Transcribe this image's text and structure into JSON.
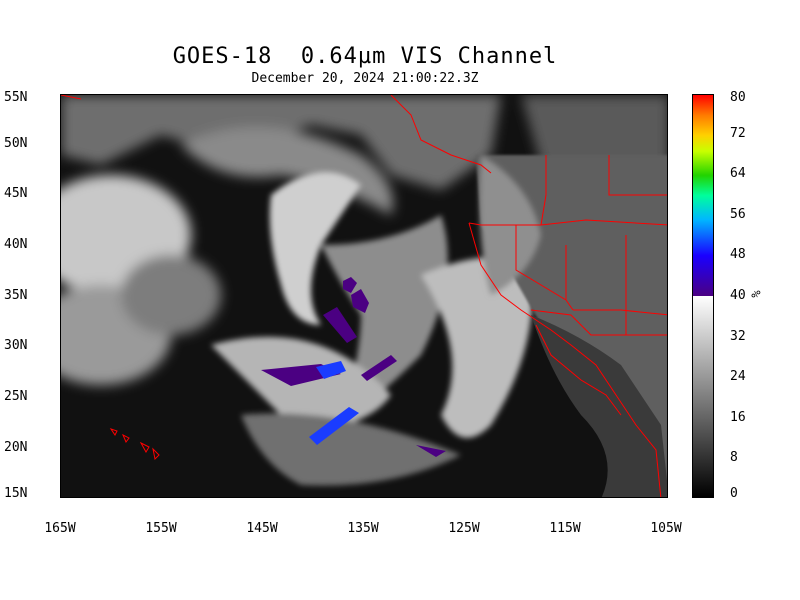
{
  "title": "GOES-18  0.64µm VIS Channel",
  "subtitle": "December 20, 2024 21:00:22.3Z",
  "lat_labels": [
    "55N",
    "50N",
    "45N",
    "40N",
    "35N",
    "30N",
    "25N",
    "20N",
    "15N"
  ],
  "lon_labels": [
    "165W",
    "155W",
    "145W",
    "135W",
    "125W",
    "115W",
    "105W"
  ],
  "colorbar": {
    "labels": [
      "80",
      "72",
      "64",
      "56",
      "48",
      "40",
      "32",
      "24",
      "16",
      "8",
      "0"
    ],
    "unit": "%"
  },
  "colors": {
    "border": "#ff0000",
    "cold_cloud": "#4b0082",
    "accent_blue": "#1a3cff"
  }
}
